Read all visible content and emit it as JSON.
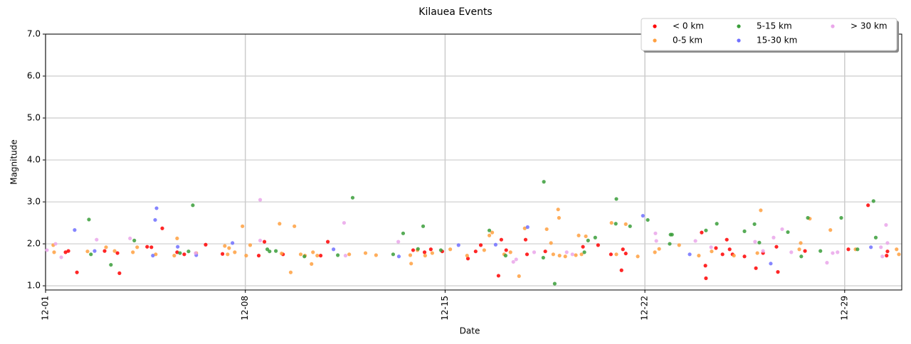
{
  "chart_data": {
    "type": "scatter",
    "title": "Kilauea Events",
    "x_label": "Date",
    "y_label": "Magnitude",
    "xlim": [
      1,
      31
    ],
    "ylim": [
      0.9,
      7.0
    ],
    "xticks": [
      {
        "value": 1,
        "label": "12-01"
      },
      {
        "value": 8,
        "label": "12-08"
      },
      {
        "value": 15,
        "label": "12-15"
      },
      {
        "value": 22,
        "label": "12-22"
      },
      {
        "value": 29,
        "label": "12-29"
      }
    ],
    "yticks": [
      {
        "value": 1,
        "label": "1.0"
      },
      {
        "value": 2,
        "label": "2.0"
      },
      {
        "value": 3,
        "label": "3.0"
      },
      {
        "value": 4,
        "label": "4.0"
      },
      {
        "value": 5,
        "label": "5.0"
      },
      {
        "value": 6,
        "label": "6.0"
      },
      {
        "value": 7,
        "label": "7.0"
      }
    ],
    "grid": true,
    "legend_position": "upper right",
    "series": [
      {
        "name": "< 0 km",
        "color": "#ff0000",
        "x": [
          1.7,
          1.8,
          2.1,
          3.07,
          3.52,
          3.59,
          4.56,
          4.71,
          5.09,
          5.61,
          5.86,
          6.61,
          7.2,
          8.47,
          8.67,
          9.32,
          10.64,
          10.89,
          13.88,
          14.28,
          14.5,
          14.9,
          15.8,
          16.07,
          16.25,
          16.87,
          16.97,
          17.14,
          17.82,
          17.87,
          18.51,
          19.83,
          20.36,
          20.81,
          21.18,
          21.23,
          21.33,
          23.99,
          24.12,
          24.14,
          24.49,
          24.72,
          24.87,
          24.97,
          25.07,
          25.49,
          25.89,
          26.14,
          26.61,
          26.66,
          27.61,
          29.13,
          29.82,
          30.47,
          30.5
        ],
        "values": [
          1.8,
          1.83,
          1.32,
          1.83,
          1.78,
          1.3,
          1.93,
          1.92,
          2.37,
          1.8,
          1.75,
          1.98,
          1.76,
          1.72,
          2.05,
          1.75,
          1.72,
          2.05,
          1.85,
          1.8,
          1.87,
          1.82,
          1.65,
          1.82,
          1.97,
          1.24,
          2.1,
          1.85,
          2.1,
          1.75,
          1.82,
          1.93,
          1.97,
          1.75,
          1.37,
          1.87,
          1.77,
          2.27,
          1.48,
          1.18,
          1.9,
          1.75,
          2.1,
          1.87,
          1.75,
          1.7,
          1.42,
          1.78,
          1.93,
          1.33,
          1.83,
          1.87,
          2.92,
          1.72,
          1.82
        ]
      },
      {
        "name": "0-5 km",
        "color": "#ffa040",
        "x": [
          1.27,
          1.3,
          2.47,
          3.12,
          3.42,
          4.06,
          4.21,
          4.86,
          5.51,
          5.61,
          6.28,
          7.28,
          7.38,
          7.43,
          7.63,
          7.9,
          8.03,
          8.17,
          9.2,
          9.27,
          9.59,
          9.72,
          9.94,
          10.09,
          10.32,
          10.37,
          10.52,
          11.64,
          12.21,
          12.58,
          13.78,
          13.81,
          14.03,
          14.3,
          14.55,
          15.18,
          15.77,
          16.37,
          16.55,
          16.65,
          17.07,
          17.29,
          17.59,
          17.79,
          18.56,
          18.71,
          18.79,
          18.96,
          18.99,
          19.01,
          19.21,
          19.58,
          19.68,
          19.78,
          19.93,
          20.83,
          21.0,
          21.33,
          21.75,
          22.35,
          22.5,
          23.2,
          23.89,
          24.34,
          25.12,
          25.94,
          26.06,
          27.41,
          27.46,
          27.78,
          28.5,
          29.38,
          30.82,
          30.9
        ],
        "values": [
          1.97,
          1.8,
          1.82,
          1.92,
          1.83,
          1.8,
          1.92,
          1.75,
          1.72,
          2.13,
          1.78,
          1.95,
          1.75,
          1.9,
          1.8,
          2.42,
          1.72,
          1.97,
          2.48,
          1.77,
          1.32,
          2.42,
          1.75,
          1.72,
          1.52,
          1.8,
          1.72,
          1.75,
          1.78,
          1.73,
          1.73,
          1.53,
          1.85,
          1.72,
          1.78,
          1.87,
          1.72,
          1.85,
          2.2,
          2.27,
          1.75,
          1.8,
          1.23,
          2.37,
          2.35,
          2.02,
          1.75,
          2.82,
          2.62,
          1.72,
          1.7,
          1.73,
          2.2,
          1.75,
          2.18,
          2.5,
          1.75,
          2.47,
          1.7,
          1.8,
          1.88,
          1.97,
          1.72,
          1.82,
          1.72,
          1.78,
          2.8,
          1.87,
          2.02,
          2.6,
          2.33,
          1.87,
          1.87,
          1.75
        ]
      },
      {
        "name": "5-15 km",
        "color": "#3a9e3a",
        "x": [
          2.52,
          2.59,
          3.29,
          4.11,
          5.71,
          6.01,
          6.16,
          8.77,
          8.85,
          9.07,
          10.07,
          11.24,
          11.76,
          13.18,
          13.53,
          14.05,
          14.23,
          14.85,
          16.55,
          17.12,
          18.46,
          18.44,
          18.84,
          19.88,
          20.01,
          20.26,
          20.98,
          21.0,
          21.48,
          22.1,
          22.87,
          22.9,
          22.95,
          24.14,
          24.52,
          25.49,
          25.84,
          26.01,
          27.01,
          27.48,
          27.71,
          28.15,
          28.88,
          29.45,
          30.01,
          30.09
        ],
        "values": [
          2.58,
          1.75,
          1.5,
          2.08,
          1.78,
          1.82,
          2.92,
          1.87,
          1.82,
          1.83,
          1.7,
          1.73,
          3.1,
          1.75,
          2.25,
          1.88,
          2.42,
          1.85,
          2.32,
          1.72,
          3.48,
          1.67,
          1.05,
          1.8,
          2.08,
          2.15,
          2.48,
          3.07,
          2.42,
          2.57,
          2.0,
          2.22,
          2.22,
          2.32,
          2.48,
          2.3,
          2.47,
          2.03,
          2.28,
          1.7,
          2.62,
          1.83,
          2.62,
          1.87,
          3.02,
          2.15
        ]
      },
      {
        "name": "15-30 km",
        "color": "#7070ff",
        "x": [
          2.02,
          2.72,
          4.76,
          4.84,
          4.89,
          5.63,
          6.28,
          7.55,
          11.09,
          13.38,
          15.47,
          16.77,
          17.89,
          21.93,
          23.57,
          26.41,
          29.92
        ],
        "values": [
          2.33,
          1.83,
          1.72,
          2.57,
          2.85,
          1.93,
          1.73,
          2.02,
          1.87,
          1.7,
          1.97,
          1.98,
          2.4,
          2.67,
          1.75,
          1.53,
          1.92
        ]
      },
      {
        "name": "> 30 km",
        "color": "#eaa6ea",
        "x": [
          1.05,
          1.35,
          1.55,
          2.79,
          3.96,
          6.26,
          8.52,
          8.52,
          11.46,
          11.51,
          13.36,
          17.39,
          17.49,
          18.12,
          19.26,
          19.46,
          22.37,
          22.4,
          23.77,
          24.32,
          25.86,
          26.14,
          26.51,
          26.81,
          27.13,
          28.38,
          28.58,
          28.75,
          30.27,
          30.32,
          30.45,
          30.5
        ],
        "values": [
          1.85,
          2.0,
          1.68,
          2.1,
          2.13,
          1.78,
          3.05,
          2.08,
          2.5,
          1.72,
          2.05,
          1.57,
          1.63,
          1.8,
          1.8,
          1.75,
          2.25,
          2.07,
          2.07,
          1.92,
          2.05,
          1.83,
          2.15,
          2.35,
          1.8,
          1.55,
          1.78,
          1.8,
          1.92,
          1.7,
          2.45,
          2.02
        ]
      }
    ]
  }
}
